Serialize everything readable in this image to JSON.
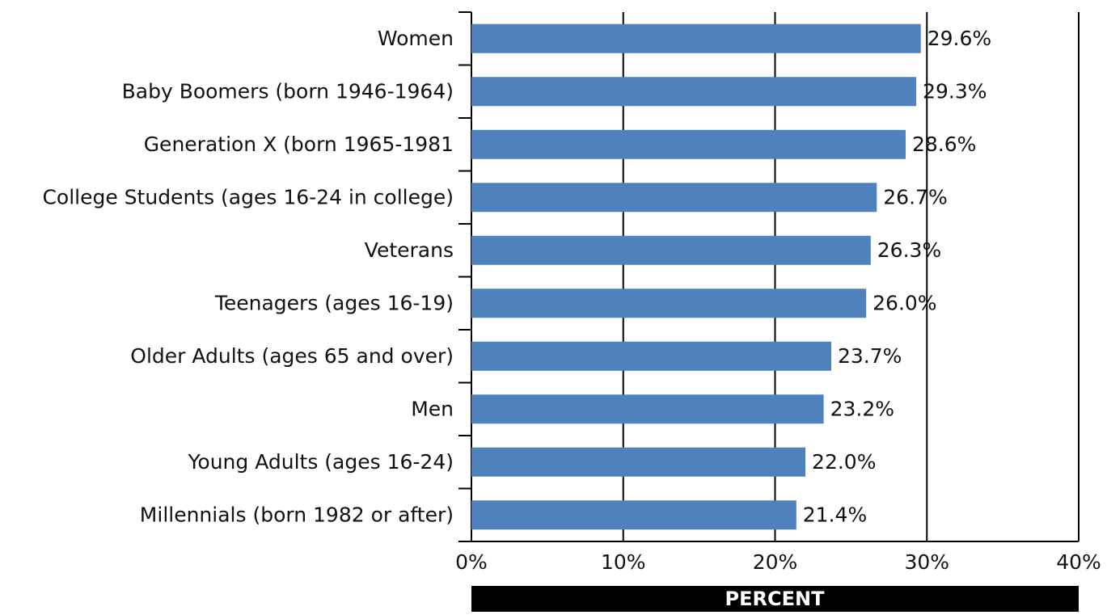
{
  "chart_data": {
    "type": "bar",
    "orientation": "horizontal",
    "categories": [
      "Women",
      "Baby Boomers (born 1946-1964)",
      "Generation X (born 1965-1981",
      "College Students (ages 16-24 in college)",
      "Veterans",
      "Teenagers (ages 16-19)",
      "Older Adults (ages 65 and over)",
      "Men",
      "Young Adults (ages 16-24)",
      "Millennials (born 1982 or after)"
    ],
    "values": [
      29.6,
      29.3,
      28.6,
      26.7,
      26.3,
      26.0,
      23.7,
      23.2,
      22.0,
      21.4
    ],
    "value_labels": [
      "29.6%",
      "29.3%",
      "28.6%",
      "26.7%",
      "26.3%",
      "26.0%",
      "23.7%",
      "23.2%",
      "22.0%",
      "21.4%"
    ],
    "color": "#4f81bd",
    "xlabel": "PERCENT",
    "xlim": [
      0,
      40
    ],
    "xticks": [
      {
        "value": 0,
        "label": "0%"
      },
      {
        "value": 10,
        "label": "10%"
      },
      {
        "value": 20,
        "label": "20%"
      },
      {
        "value": 30,
        "label": "30%"
      },
      {
        "value": 40,
        "label": "40%"
      }
    ],
    "grid": true
  }
}
